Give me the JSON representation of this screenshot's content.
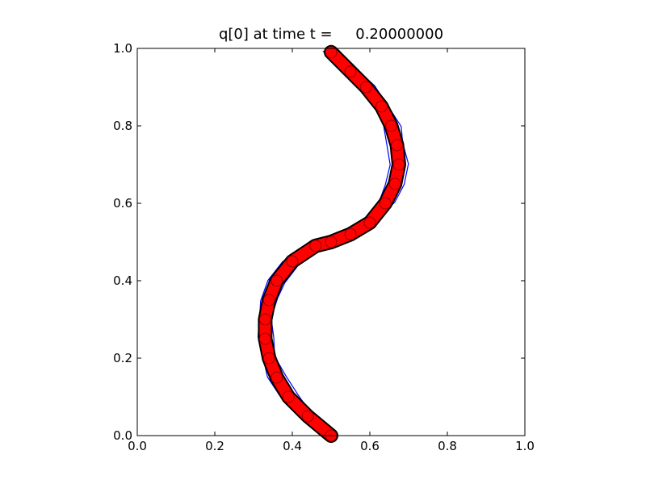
{
  "chart_data": {
    "type": "line",
    "title": "q[0] at time t =     0.20000000",
    "xlabel": "",
    "ylabel": "",
    "xlim": [
      0.0,
      1.0
    ],
    "ylim": [
      0.0,
      1.0
    ],
    "x_ticks": [
      "0.0",
      "0.2",
      "0.4",
      "0.6",
      "0.8",
      "1.0"
    ],
    "y_ticks": [
      "0.0",
      "0.2",
      "0.4",
      "0.6",
      "0.8",
      "1.0"
    ],
    "grid": false,
    "legend": "none",
    "colors": {
      "contours": "#0000ff",
      "curve_outline": "#000000",
      "curve_fill": "#ff0000"
    },
    "series": [
      {
        "style": "thick-red-band",
        "points": [
          [
            0.5,
            0.0
          ],
          [
            0.44,
            0.05
          ],
          [
            0.39,
            0.1
          ],
          [
            0.36,
            0.15
          ],
          [
            0.34,
            0.2
          ],
          [
            0.33,
            0.25
          ],
          [
            0.33,
            0.3
          ],
          [
            0.34,
            0.35
          ],
          [
            0.36,
            0.4
          ],
          [
            0.4,
            0.45
          ],
          [
            0.46,
            0.49
          ],
          [
            0.5,
            0.5
          ],
          [
            0.55,
            0.52
          ],
          [
            0.6,
            0.55
          ],
          [
            0.64,
            0.6
          ],
          [
            0.665,
            0.65
          ],
          [
            0.675,
            0.7
          ],
          [
            0.67,
            0.75
          ],
          [
            0.655,
            0.8
          ],
          [
            0.63,
            0.85
          ],
          [
            0.59,
            0.9
          ],
          [
            0.55,
            0.94
          ],
          [
            0.5,
            0.99
          ]
        ]
      }
    ]
  }
}
